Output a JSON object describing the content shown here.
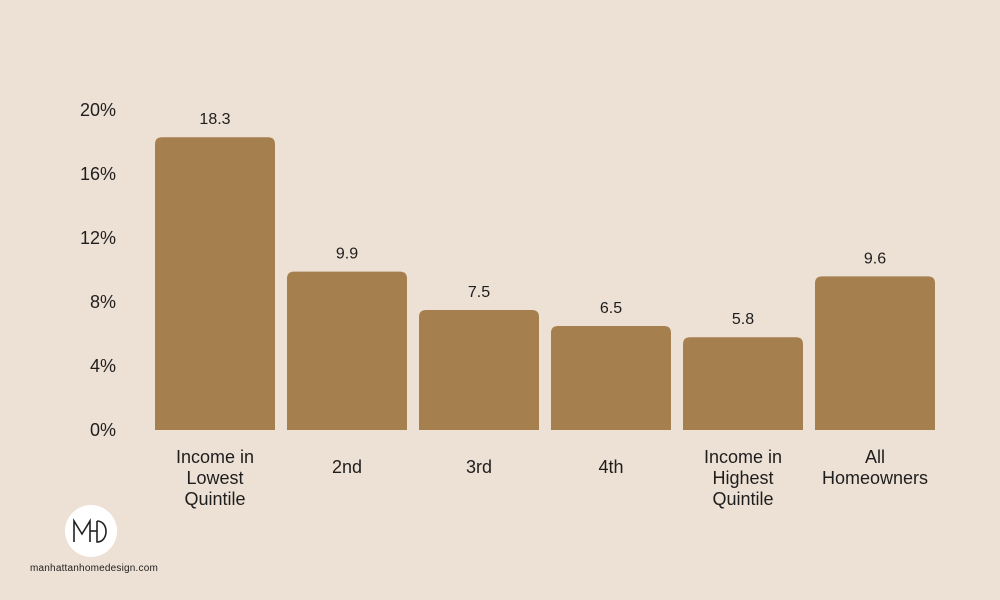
{
  "colors": {
    "background": "#ede0d4",
    "bar": "#a67f4f",
    "text": "#1e1e1e"
  },
  "chart_data": {
    "type": "bar",
    "title": "",
    "xlabel": "",
    "ylabel": "",
    "categories": [
      [
        "Income in",
        "Lowest",
        "Quintile"
      ],
      [
        "2nd"
      ],
      [
        "3rd"
      ],
      [
        "4th"
      ],
      [
        "Income in",
        "Highest",
        "Quintile"
      ],
      [
        "All",
        "Homeowners"
      ]
    ],
    "values": [
      18.3,
      9.9,
      7.5,
      6.5,
      5.8,
      9.6
    ],
    "data_labels": [
      "18.3",
      "9.9",
      "7.5",
      "6.5",
      "5.8",
      "9.6"
    ],
    "ylim": [
      0,
      20
    ],
    "yticks": [
      0,
      4,
      8,
      12,
      16,
      20
    ],
    "ytick_labels": [
      "0%",
      "4%",
      "8%",
      "12%",
      "16%",
      "20%"
    ],
    "grid": false,
    "legend": "none"
  },
  "branding": {
    "logo_text": "MHD",
    "logo_icon": "mhd-monogram-logo",
    "website": "manhattanhomedesign.com"
  }
}
